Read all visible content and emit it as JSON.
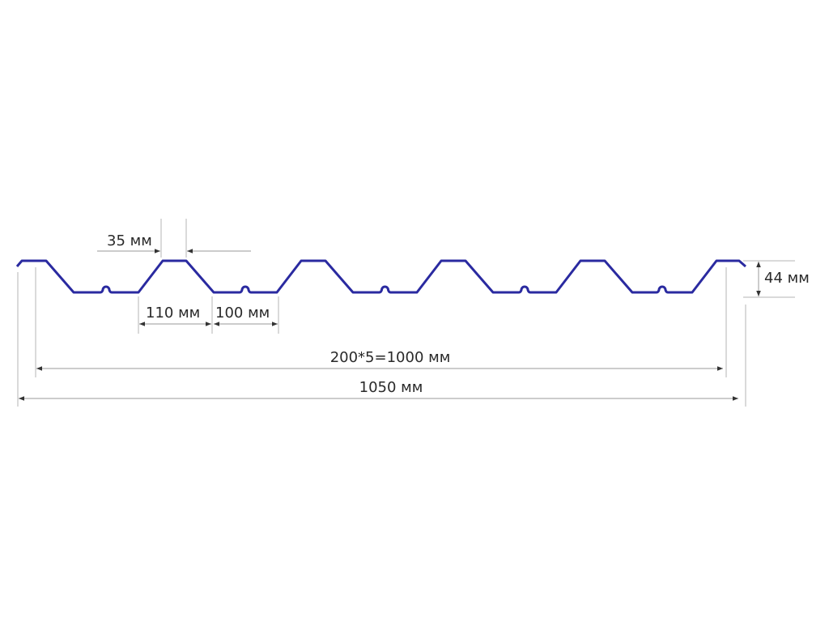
{
  "diagram": {
    "profile_color": "#2a2aa0",
    "dimensions": {
      "crest_width": "35 мм",
      "slope_span": "110 мм",
      "valley_width": "100 мм",
      "height": "44 мм",
      "working_width": "200*5=1000 мм",
      "total_width": "1050 мм"
    }
  }
}
